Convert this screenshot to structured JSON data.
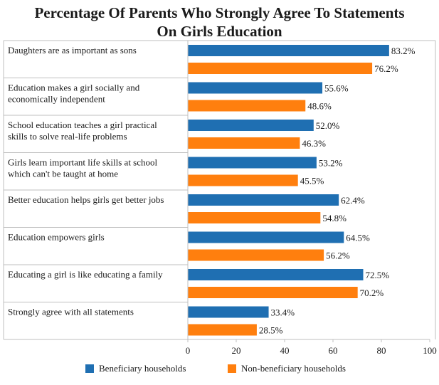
{
  "chart_data": {
    "type": "bar",
    "orientation": "horizontal",
    "title_lines": [
      "Percentage Of Parents Who Strongly Agree To Statements",
      "On Girls Education"
    ],
    "categories": [
      [
        "Daughters are as important as sons"
      ],
      [
        "Education makes a girl socially and",
        "economically independent"
      ],
      [
        "School education teaches a girl practical",
        "skills to solve real-life problems"
      ],
      [
        "Girls learn important life skills at school",
        "which can't be taught at home"
      ],
      [
        "Better education helps girls get better jobs"
      ],
      [
        "Education empowers girls"
      ],
      [
        "Educating a girl is like educating a family"
      ],
      [
        "Strongly agree with all statements"
      ]
    ],
    "series": [
      {
        "name": "Beneficiary households",
        "color": "#1f6fb2",
        "values": [
          83.2,
          55.6,
          52.0,
          53.2,
          62.4,
          64.5,
          72.5,
          33.4
        ],
        "labels": [
          "83.2%",
          "55.6%",
          "52.0%",
          "53.2%",
          "62.4%",
          "64.5%",
          "72.5%",
          "33.4%"
        ]
      },
      {
        "name": "Non-beneficiary households",
        "color": "#ff7f0e",
        "values": [
          76.2,
          48.6,
          46.3,
          45.5,
          54.8,
          56.2,
          70.2,
          28.5
        ],
        "labels": [
          "76.2%",
          "48.6%",
          "46.3%",
          "45.5%",
          "54.8%",
          "56.2%",
          "70.2%",
          "28.5%"
        ]
      }
    ],
    "xlim": [
      0,
      100
    ],
    "xticks": [
      "0",
      "20",
      "40",
      "60",
      "80",
      "100"
    ],
    "xtick_values": [
      0,
      20,
      40,
      60,
      80,
      100
    ],
    "legend_position": "bottom",
    "grid": false
  }
}
